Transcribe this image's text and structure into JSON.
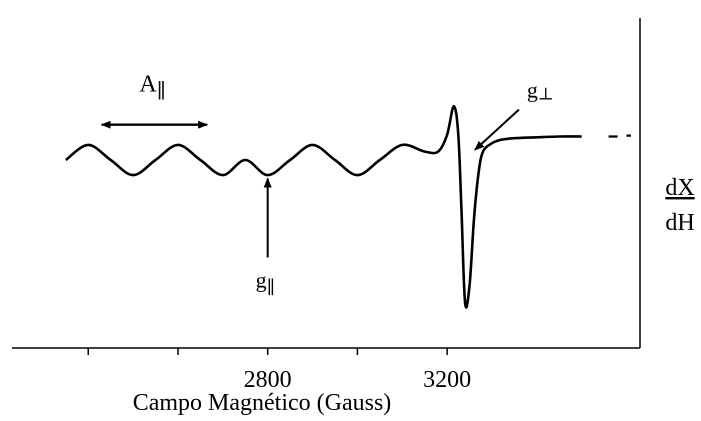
{
  "chart_data": {
    "type": "line",
    "title": "",
    "xlabel": "Campo Magnético (Gauss)",
    "ylabel_numerator": "dX",
    "ylabel_denominator": "dH",
    "x_tick_labels": [
      {
        "value": 2800,
        "label": "2800"
      },
      {
        "value": 3200,
        "label": "3200"
      }
    ],
    "x_minor_ticks": [
      2400,
      2600,
      3000
    ],
    "xlim": [
      2230,
      3630
    ],
    "ylim": [
      -1.0,
      1.0
    ],
    "grid": false,
    "legend": "none",
    "series": [
      {
        "x": [
          2350,
          2400,
          2450,
          2500,
          2550,
          2600,
          2650,
          2700,
          2750,
          2800,
          2850,
          2900,
          2950,
          3000,
          3050,
          3100,
          3150,
          3180,
          3200,
          3215,
          3225,
          3232,
          3240,
          3250,
          3260,
          3270,
          3280,
          3300,
          3320,
          3350,
          3400,
          3450,
          3500
        ],
        "y": [
          0.0,
          0.09,
          0.0,
          -0.09,
          0.0,
          0.09,
          0.0,
          -0.09,
          0.0,
          -0.09,
          0.0,
          0.09,
          0.0,
          -0.09,
          0.0,
          0.09,
          0.05,
          0.05,
          0.15,
          0.32,
          0.15,
          -0.3,
          -0.85,
          -0.75,
          -0.35,
          -0.08,
          0.05,
          0.1,
          0.12,
          0.13,
          0.135,
          0.14,
          0.14
        ]
      }
    ],
    "dashed_tail": {
      "x": [
        3560,
        3580,
        3600,
        3610
      ],
      "y": [
        0.14,
        0.14,
        0.145,
        0.145
      ]
    },
    "annotations": {
      "a_parallel": {
        "label": "A",
        "subscript": "∥",
        "x_from": 2430,
        "x_to": 2665,
        "y": 0.21
      },
      "g_parallel": {
        "label": "g",
        "subscript": "∥",
        "x": 2800,
        "y_head": -0.11,
        "y_tail": -0.58
      },
      "g_perp": {
        "label": "g",
        "subscript": "⊥",
        "x_head": 3262,
        "y_head": 0.06,
        "x_tail": 3360,
        "y_tail": 0.3
      }
    }
  }
}
